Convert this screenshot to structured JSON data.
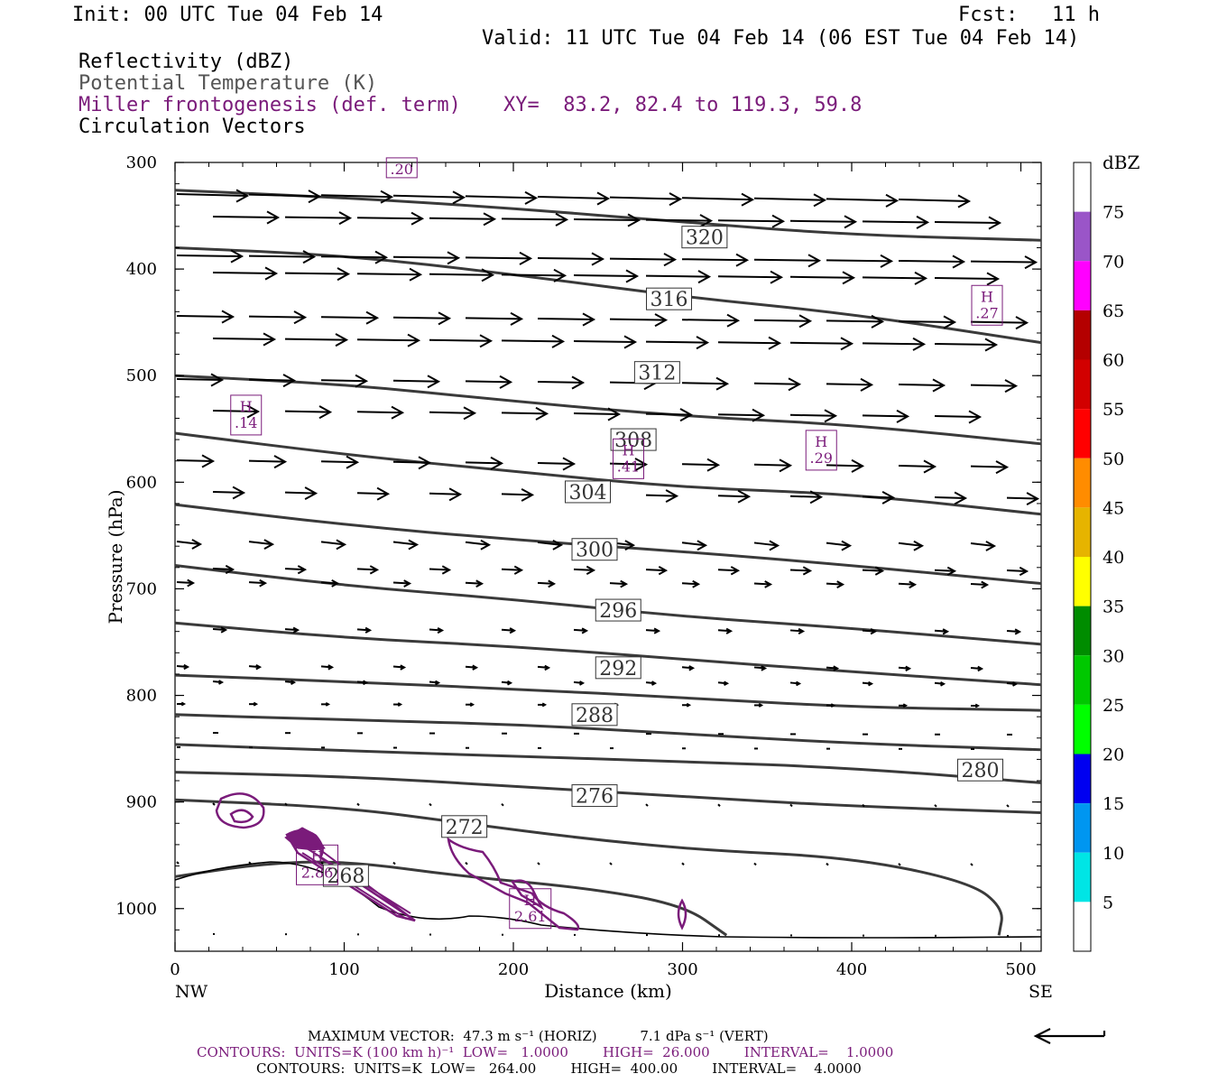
{
  "header": {
    "init": "Init: 00 UTC Tue 04 Feb 14",
    "fcst_label": "Fcst:",
    "fcst_value": "11 h",
    "valid": "Valid: 11 UTC Tue 04 Feb 14 (06 EST Tue 04 Feb 14)"
  },
  "fields": {
    "reflectivity": "Reflectivity (dBZ)",
    "theta": "Potential Temperature (K)",
    "miller": "Miller frontogenesis (def. term)",
    "xy": "XY=  83.2, 82.4 to 119.3, 59.8",
    "vectors": "Circulation Vectors"
  },
  "colors": {
    "theta_contour": "#3a3a3a",
    "frontogenesis": "#7a1b7a",
    "vector": "#000000"
  },
  "chart_data": {
    "type": "cross-section",
    "xlabel": "Distance (km)",
    "ylabel": "Pressure (hPa)",
    "xlim": [
      0,
      512
    ],
    "ylim": [
      1040,
      300
    ],
    "x_ticks": [
      "0",
      "100",
      "200",
      "300",
      "400",
      "500"
    ],
    "y_ticks": [
      "300",
      "400",
      "500",
      "600",
      "700",
      "800",
      "900",
      "1000"
    ],
    "x_end_labels": {
      "left": "NW",
      "right": "SE"
    },
    "colorbar": {
      "title": "dBZ",
      "labels": [
        "5",
        "10",
        "15",
        "20",
        "25",
        "30",
        "35",
        "40",
        "45",
        "50",
        "55",
        "60",
        "65",
        "70",
        "75"
      ],
      "colors": [
        "#ffffff",
        "#00e5e5",
        "#0096f0",
        "#0000f0",
        "#00ff00",
        "#00c800",
        "#008c00",
        "#ffff00",
        "#e6b400",
        "#ff8c00",
        "#ff0000",
        "#d20000",
        "#b40000",
        "#ff00ff",
        "#9a55c8",
        "#ffffff"
      ]
    },
    "theta_contours": [
      {
        "label": "320",
        "label_at": [
          313,
          370
        ],
        "points": [
          [
            0,
            326
          ],
          [
            100,
            333
          ],
          [
            200,
            343
          ],
          [
            300,
            356
          ],
          [
            400,
            368
          ],
          [
            512,
            373
          ]
        ]
      },
      {
        "label": "316",
        "label_at": [
          292,
          428
        ],
        "points": [
          [
            0,
            380
          ],
          [
            100,
            387
          ],
          [
            200,
            405
          ],
          [
            300,
            426
          ],
          [
            400,
            442
          ],
          [
            512,
            469
          ]
        ]
      },
      {
        "label": "312",
        "label_at": [
          285,
          497
        ],
        "points": [
          [
            0,
            500
          ],
          [
            100,
            508
          ],
          [
            200,
            524
          ],
          [
            300,
            538
          ],
          [
            400,
            546
          ],
          [
            512,
            564
          ]
        ]
      },
      {
        "label": "308",
        "label_at": [
          271,
          560
        ],
        "points": [
          [
            0,
            554
          ],
          [
            100,
            574
          ],
          [
            200,
            590
          ],
          [
            300,
            605
          ],
          [
            400,
            611
          ],
          [
            512,
            630
          ]
        ]
      },
      {
        "label": "304",
        "label_at": [
          244,
          609
        ],
        "points": [
          [
            0,
            621
          ],
          [
            100,
            640
          ],
          [
            200,
            654
          ],
          [
            300,
            665
          ],
          [
            400,
            678
          ],
          [
            512,
            695
          ]
        ]
      },
      {
        "label": "300",
        "label_at": [
          248,
          663
        ],
        "points": [
          [
            0,
            678
          ],
          [
            100,
            697
          ],
          [
            200,
            710
          ],
          [
            300,
            726
          ],
          [
            400,
            737
          ],
          [
            512,
            752
          ]
        ]
      },
      {
        "label": "296",
        "label_at": [
          262,
          720
        ],
        "points": [
          [
            0,
            732
          ],
          [
            100,
            746
          ],
          [
            200,
            754
          ],
          [
            300,
            766
          ],
          [
            400,
            778
          ],
          [
            512,
            790
          ]
        ]
      },
      {
        "label": "292",
        "label_at": [
          262,
          774
        ],
        "points": [
          [
            0,
            781
          ],
          [
            100,
            787
          ],
          [
            200,
            794
          ],
          [
            300,
            802
          ],
          [
            400,
            811
          ],
          [
            512,
            814
          ]
        ]
      },
      {
        "label": "288",
        "label_at": [
          248,
          818
        ],
        "points": [
          [
            0,
            818
          ],
          [
            100,
            823
          ],
          [
            200,
            827
          ],
          [
            300,
            836
          ],
          [
            400,
            845
          ],
          [
            512,
            851
          ]
        ]
      },
      {
        "label": "280",
        "label_at": [
          476,
          870
        ],
        "points": [
          [
            0,
            846
          ],
          [
            100,
            852
          ],
          [
            200,
            857
          ],
          [
            300,
            862
          ],
          [
            400,
            868
          ],
          [
            512,
            882
          ]
        ]
      },
      {
        "label": "276",
        "label_at": [
          248,
          894
        ],
        "points": [
          [
            0,
            872
          ],
          [
            100,
            876
          ],
          [
            200,
            885
          ],
          [
            300,
            895
          ],
          [
            400,
            904
          ],
          [
            512,
            910
          ]
        ]
      },
      {
        "label": "272",
        "label_at": [
          171,
          923
        ],
        "points": [
          [
            0,
            898
          ],
          [
            100,
            905
          ],
          [
            171,
            920
          ],
          [
            240,
            934
          ],
          [
            310,
            945
          ],
          [
            400,
            952
          ],
          [
            470,
            975
          ],
          [
            490,
            1000
          ],
          [
            487,
            1025
          ]
        ]
      },
      {
        "label": "268",
        "label_at": [
          101,
          969
        ],
        "points": [
          [
            0,
            970
          ],
          [
            50,
            958
          ],
          [
            100,
            955
          ],
          [
            171,
            970
          ],
          [
            240,
            980
          ],
          [
            300,
            996
          ],
          [
            326,
            1025
          ]
        ]
      }
    ],
    "highs": [
      {
        "label": "H\n.14",
        "at": [
          42,
          537
        ]
      },
      {
        "label": "H\n.41",
        "at": [
          268,
          578
        ]
      },
      {
        "label": "H\n.29",
        "at": [
          382,
          570
        ]
      },
      {
        "label": "H\n.27",
        "at": [
          480,
          434
        ]
      },
      {
        "label": "H\n2.61",
        "at": [
          210,
          1000
        ]
      },
      {
        "label": "H\n2.86",
        "at": [
          84,
          959
        ]
      },
      {
        "label": ".20",
        "at": [
          134,
          305
        ]
      }
    ],
    "max_vector_text": "MAXIMUM VECTOR:  47.3 m s⁻¹ (HORIZ)          7.1 dPa s⁻¹ (VERT)",
    "contours_fronto_text": "CONTOURS:  UNITS=K (100 km h)⁻¹  LOW=   1.0000        HIGH=  26.000        INTERVAL=    1.0000",
    "contours_theta_text": "CONTOURS:  UNITS=K  LOW=   264.00        HIGH=  400.00        INTERVAL=    4.0000"
  }
}
